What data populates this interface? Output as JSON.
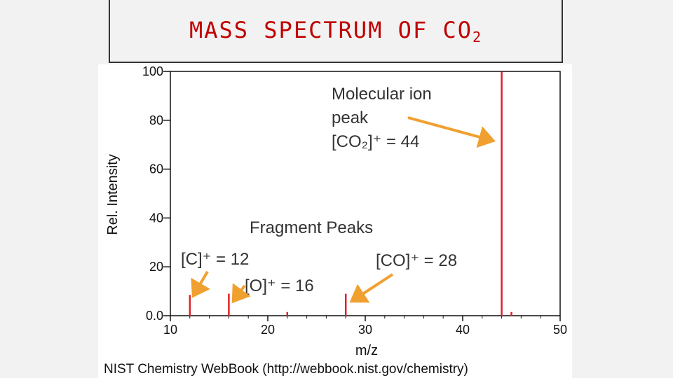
{
  "title": {
    "main": "MASS SPECTRUM OF CO",
    "sub": "2"
  },
  "source": "NIST Chemistry WebBook (http://webbook.nist.gov/chemistry)",
  "annotations": {
    "molecular": {
      "line1": "Molecular ion",
      "line2": "peak",
      "formula": "[CO₂]⁺ = 44"
    },
    "fragments_title": "Fragment Peaks",
    "c": "[C]⁺ = 12",
    "o": "[O]⁺ = 16",
    "co": "[CO]⁺ = 28"
  },
  "colors": {
    "peak": "#e0202a",
    "arrow": "#f0a030",
    "title": "#c00000"
  },
  "chart_data": {
    "type": "bar",
    "xlabel": "m/z",
    "ylabel": "Rel. Intensity",
    "xlim": [
      10,
      50
    ],
    "ylim": [
      0,
      100
    ],
    "x_ticks": [
      10,
      20,
      30,
      40,
      50
    ],
    "y_ticks": [
      {
        "v": 0,
        "label": "0.0"
      },
      {
        "v": 20,
        "label": "20"
      },
      {
        "v": 40,
        "label": "40"
      },
      {
        "v": 60,
        "label": "60"
      },
      {
        "v": 80,
        "label": "80"
      },
      {
        "v": 100,
        "label": "100"
      }
    ],
    "peaks": [
      {
        "mz": 12,
        "intensity": 8.5
      },
      {
        "mz": 16,
        "intensity": 9.0
      },
      {
        "mz": 22,
        "intensity": 1.5
      },
      {
        "mz": 28,
        "intensity": 9.0
      },
      {
        "mz": 44,
        "intensity": 99.9
      },
      {
        "mz": 45,
        "intensity": 1.5
      }
    ]
  }
}
